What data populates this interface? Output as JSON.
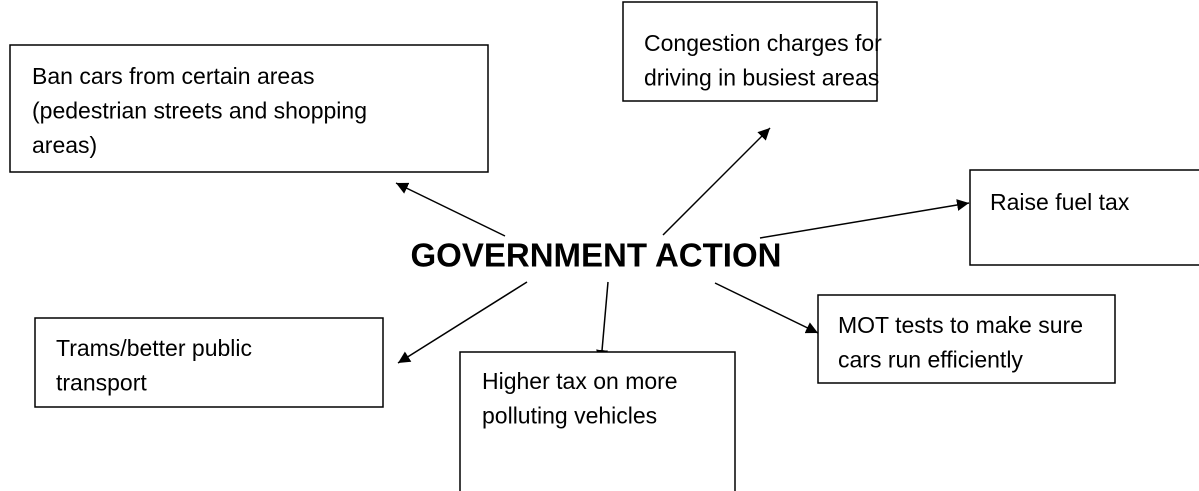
{
  "center": {
    "label": "GOVERNMENT ACTION"
  },
  "nodes": [
    {
      "lines": [
        "Ban cars from certain areas",
        "(pedestrian streets and shopping",
        "areas)"
      ]
    },
    {
      "lines": [
        "Congestion charges for",
        "driving in busiest areas"
      ]
    },
    {
      "lines": [
        "Raise fuel tax"
      ]
    },
    {
      "lines": [
        "MOT tests to make sure",
        "cars run efficiently"
      ]
    },
    {
      "lines": [
        "Higher tax on more",
        "polluting vehicles"
      ]
    },
    {
      "lines": [
        "Trams/better public",
        "transport"
      ]
    }
  ]
}
